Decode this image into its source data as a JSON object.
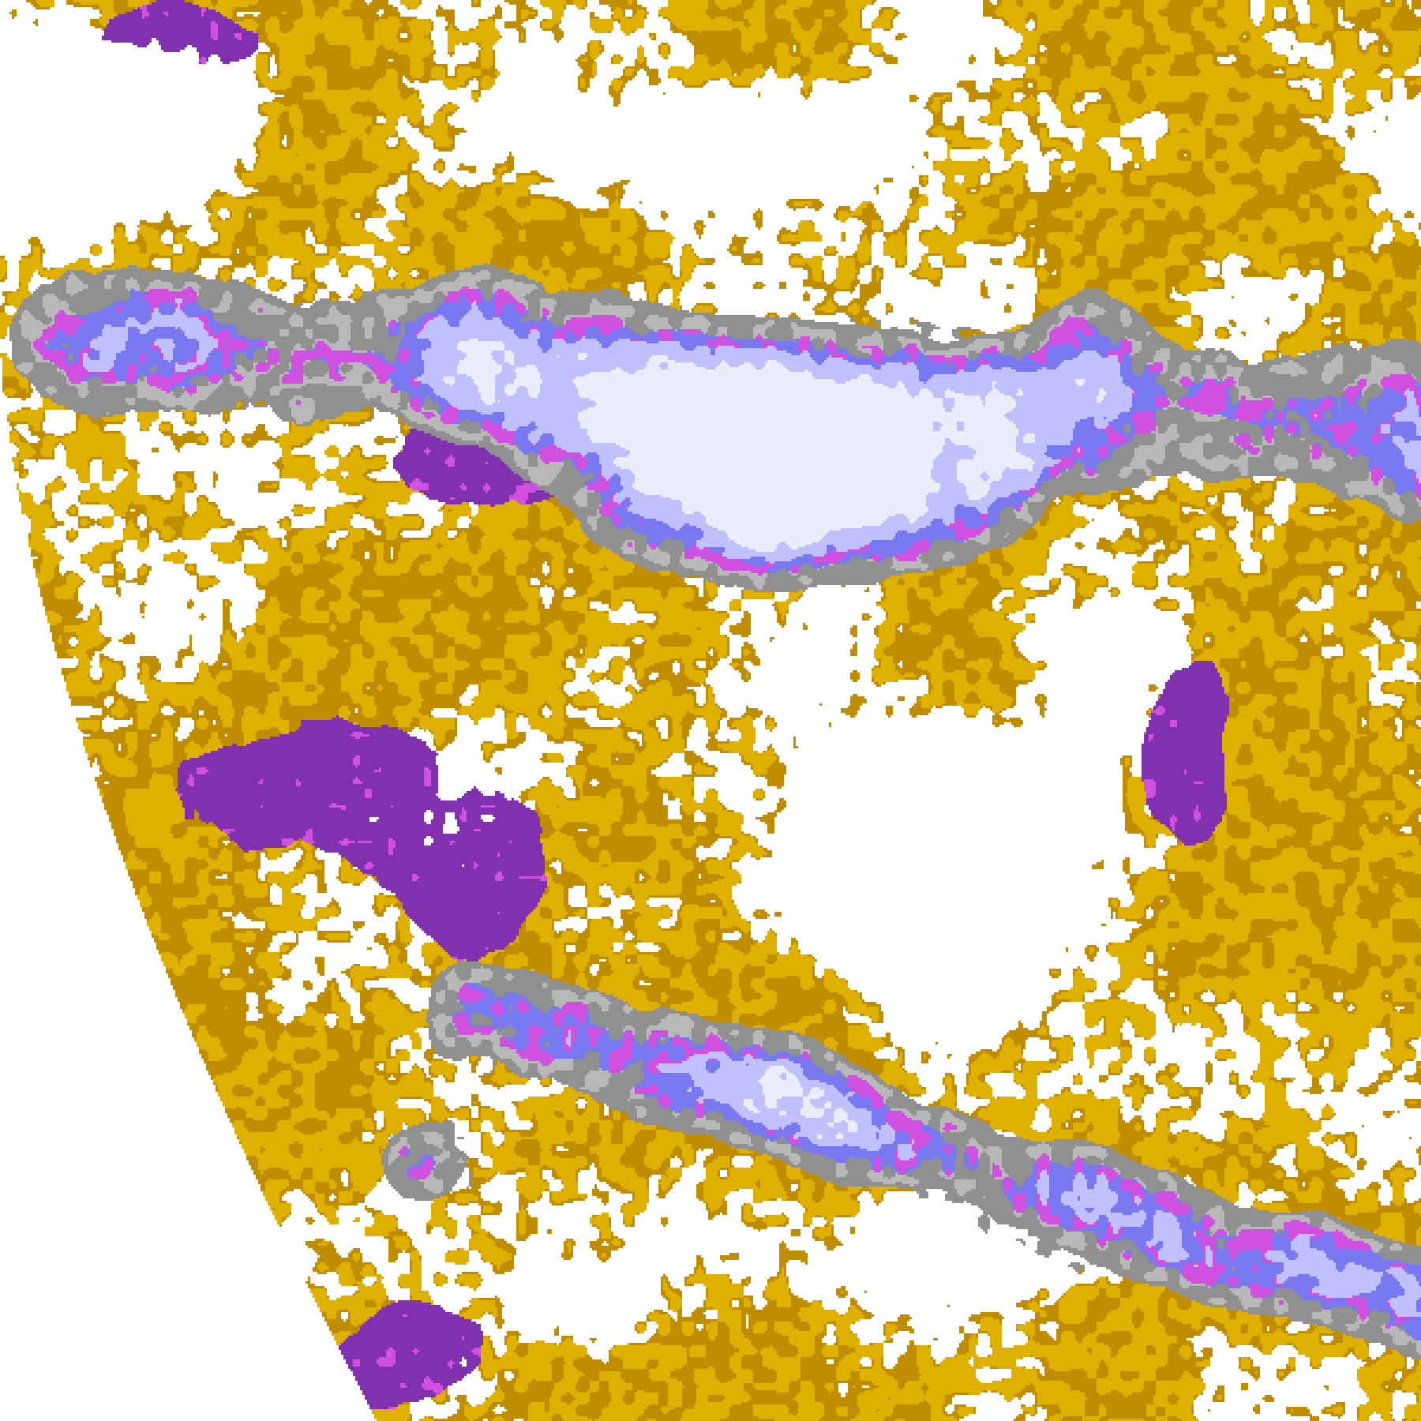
{
  "image": {
    "kind": "false-color satellite cloud classification",
    "palette": {
      "clear": "#ffffff",
      "low_cloud_light": "#e0b000",
      "low_cloud_dark": "#c08c00",
      "mid_cloud_gray": "#909090",
      "mid_cloud_light_gray": "#b8b8b8",
      "thick_purple": "#8030b0",
      "magenta": "#d050e0",
      "periwinkle": "#7878f0",
      "lavender": "#c0c0ff",
      "near_white_top": "#ececff"
    }
  }
}
